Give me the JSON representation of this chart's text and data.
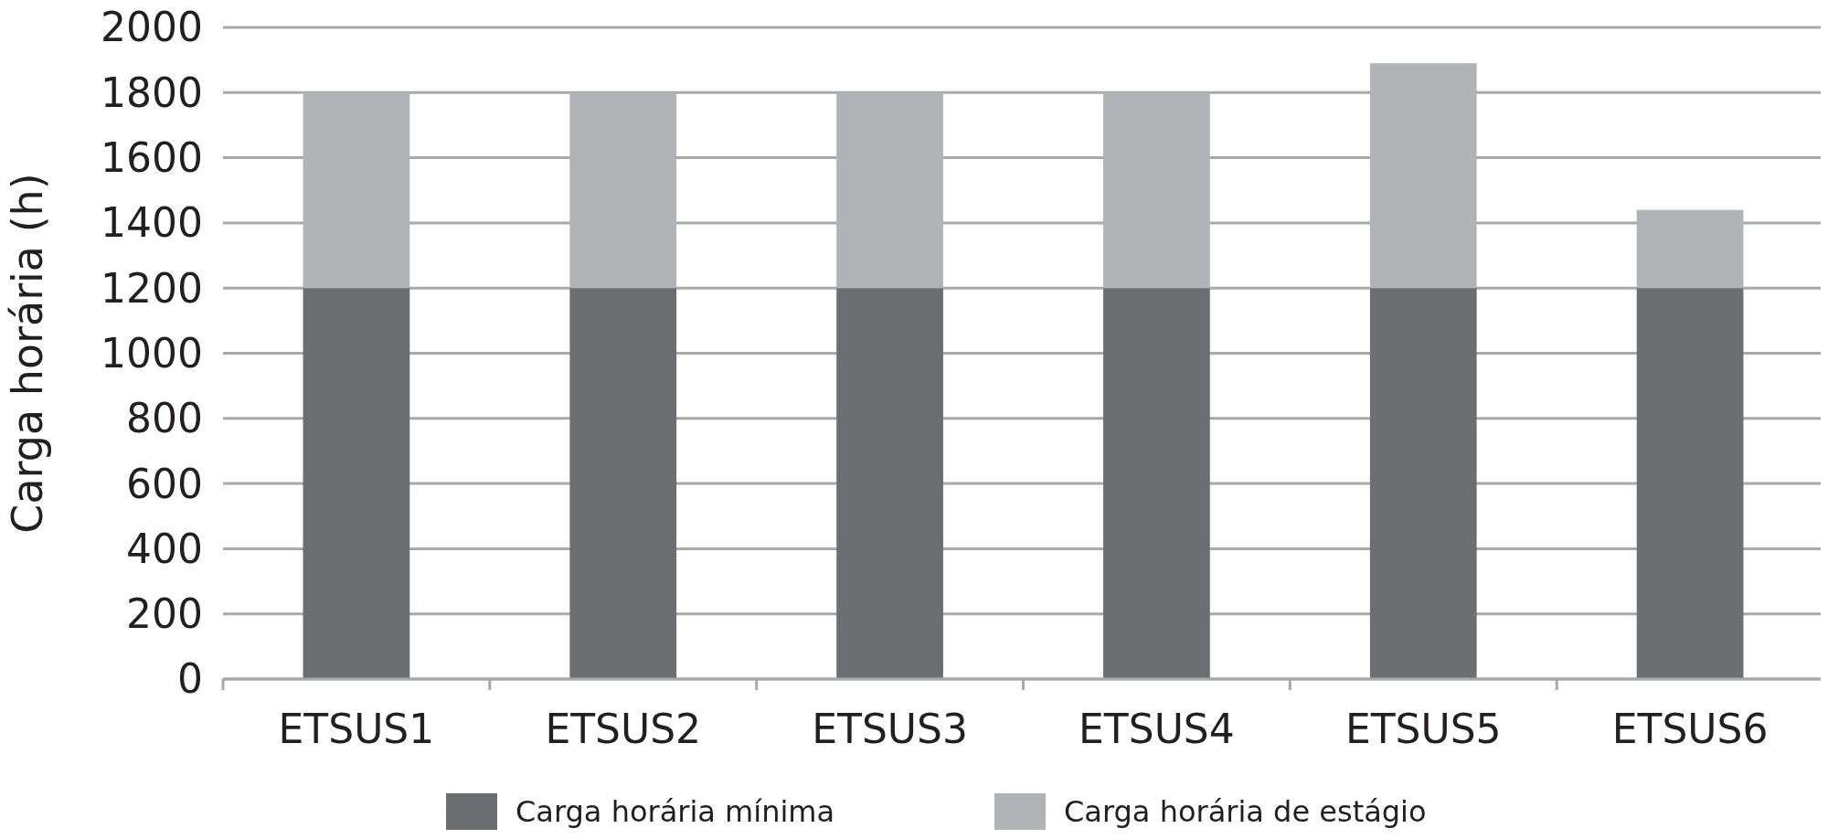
{
  "chart_data": {
    "type": "bar",
    "stacked": true,
    "ylabel": "Carga horária (h)",
    "categories": [
      "ETSUS1",
      "ETSUS2",
      "ETSUS3",
      "ETSUS4",
      "ETSUS5",
      "ETSUS6"
    ],
    "series": [
      {
        "name": "Carga horária mínima",
        "color": "#6d6e71",
        "values": [
          1200,
          1200,
          1200,
          1200,
          1200,
          1200
        ]
      },
      {
        "name": "Carga horária de estágio",
        "color": "#b1b3b6",
        "values": [
          600,
          600,
          600,
          600,
          690,
          240
        ]
      }
    ],
    "ylim": [
      0,
      2000
    ],
    "yticks": [
      0,
      200,
      400,
      600,
      800,
      1000,
      1200,
      1400,
      1600,
      1800,
      2000
    ],
    "grid": "y",
    "legend": "bottom"
  }
}
